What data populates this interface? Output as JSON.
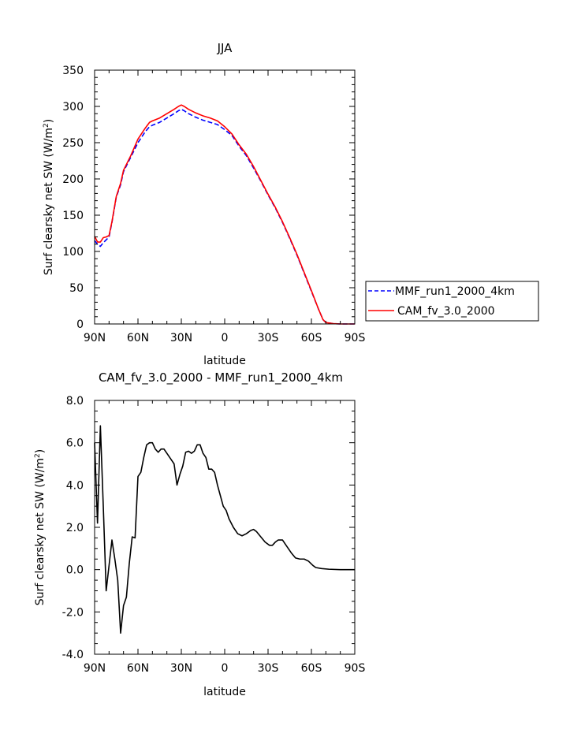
{
  "figure": {
    "top_title": "JJA",
    "bottom_title": "CAM_fv_3.0_2000 - MMF_run1_2000_4km"
  },
  "chart_data": [
    {
      "type": "line",
      "title": "JJA",
      "xlabel": "latitude",
      "ylabel": "Surf clearsky net SW (W/m²)",
      "ylabel_main": "Surf clearsky net SW (W/m",
      "ylabel_sup": "2",
      "ylabel_end": ")",
      "xticks": [
        90,
        60,
        30,
        0,
        -30,
        -60,
        -90
      ],
      "xtick_labels": [
        "90N",
        "60N",
        "30N",
        "0",
        "30S",
        "60S",
        "90S"
      ],
      "xlim": [
        90,
        -90
      ],
      "yticks": [
        0,
        50,
        100,
        150,
        200,
        250,
        300,
        350
      ],
      "ytick_labels": [
        "0",
        "50",
        "100",
        "150",
        "200",
        "250",
        "300",
        "350"
      ],
      "ylim": [
        0,
        350
      ],
      "legend_position": "right",
      "series": [
        {
          "name": "MMF_run1_2000_4km",
          "color": "#0000ff",
          "dash": "dashed",
          "points": [
            [
              90,
              115
            ],
            [
              88,
              110
            ],
            [
              86,
              107
            ],
            [
              84,
              112
            ],
            [
              82,
              116
            ],
            [
              80,
              120
            ],
            [
              78,
              140
            ],
            [
              75,
              175
            ],
            [
              72,
              192
            ],
            [
              70,
              210
            ],
            [
              65,
              230
            ],
            [
              60,
              250
            ],
            [
              55,
              265
            ],
            [
              52,
              272
            ],
            [
              50,
              274
            ],
            [
              45,
              278
            ],
            [
              40,
              284
            ],
            [
              35,
              290
            ],
            [
              32,
              294
            ],
            [
              30,
              296
            ],
            [
              28,
              294
            ],
            [
              25,
              290
            ],
            [
              20,
              285
            ],
            [
              15,
              281
            ],
            [
              10,
              278
            ],
            [
              5,
              275
            ],
            [
              0,
              268
            ],
            [
              -5,
              260
            ],
            [
              -10,
              245
            ],
            [
              -15,
              232
            ],
            [
              -20,
              215
            ],
            [
              -25,
              197
            ],
            [
              -30,
              178
            ],
            [
              -35,
              160
            ],
            [
              -40,
              140
            ],
            [
              -45,
              118
            ],
            [
              -50,
              95
            ],
            [
              -55,
              70
            ],
            [
              -60,
              45
            ],
            [
              -65,
              20
            ],
            [
              -68,
              6
            ],
            [
              -70,
              2
            ],
            [
              -75,
              0.5
            ],
            [
              -80,
              0
            ],
            [
              -90,
              0
            ]
          ]
        },
        {
          "name": "CAM_fv_3.0_2000",
          "color": "#ff0000",
          "dash": "solid",
          "points": [
            [
              90,
              121
            ],
            [
              88,
              113
            ],
            [
              86,
              113
            ],
            [
              84,
              119
            ],
            [
              82,
              120
            ],
            [
              80,
              122
            ],
            [
              78,
              141
            ],
            [
              75,
              176
            ],
            [
              72,
              194
            ],
            [
              70,
              212
            ],
            [
              65,
              232
            ],
            [
              60,
              255
            ],
            [
              55,
              270
            ],
            [
              52,
              278
            ],
            [
              50,
              280
            ],
            [
              45,
              284
            ],
            [
              40,
              290
            ],
            [
              35,
              296
            ],
            [
              32,
              300
            ],
            [
              30,
              302
            ],
            [
              28,
              300
            ],
            [
              25,
              296
            ],
            [
              20,
              291
            ],
            [
              15,
              287
            ],
            [
              10,
              284
            ],
            [
              5,
              280
            ],
            [
              0,
              272
            ],
            [
              -5,
              262
            ],
            [
              -10,
              247
            ],
            [
              -15,
              234
            ],
            [
              -20,
              217
            ],
            [
              -25,
              198
            ],
            [
              -30,
              179
            ],
            [
              -35,
              161
            ],
            [
              -40,
              141
            ],
            [
              -45,
              119
            ],
            [
              -50,
              96
            ],
            [
              -55,
              71
            ],
            [
              -60,
              46
            ],
            [
              -65,
              20
            ],
            [
              -68,
              6
            ],
            [
              -70,
              2
            ],
            [
              -75,
              0.5
            ],
            [
              -80,
              0
            ],
            [
              -90,
              0
            ]
          ]
        }
      ]
    },
    {
      "type": "line",
      "title": "CAM_fv_3.0_2000 - MMF_run1_2000_4km",
      "xlabel": "latitude",
      "ylabel": "Surf clearsky net SW (W/m²)",
      "ylabel_main": "Surf clearsky net SW (W/m",
      "ylabel_sup": "2",
      "ylabel_end": ")",
      "xticks": [
        90,
        60,
        30,
        0,
        -30,
        -60,
        -90
      ],
      "xtick_labels": [
        "90N",
        "60N",
        "30N",
        "0",
        "30S",
        "60S",
        "90S"
      ],
      "xlim": [
        90,
        -90
      ],
      "yticks": [
        -4,
        -2,
        0,
        2,
        4,
        6,
        8
      ],
      "ytick_labels": [
        "-4.0",
        "-2.0",
        "0.0",
        "2.0",
        "4.0",
        "6.0",
        "8.0"
      ],
      "ylim": [
        -4,
        8
      ],
      "series": [
        {
          "color": "#000000",
          "dash": "solid",
          "points": [
            [
              90,
              6.0
            ],
            [
              88,
              2.2
            ],
            [
              86,
              6.8
            ],
            [
              84,
              3.0
            ],
            [
              82,
              -1.0
            ],
            [
              80,
              0.2
            ],
            [
              78,
              1.4
            ],
            [
              76,
              0.5
            ],
            [
              74,
              -0.5
            ],
            [
              72,
              -3.0
            ],
            [
              70,
              -1.7
            ],
            [
              68,
              -1.3
            ],
            [
              66,
              0.3
            ],
            [
              64,
              1.55
            ],
            [
              62,
              1.5
            ],
            [
              60,
              4.4
            ],
            [
              58,
              4.6
            ],
            [
              56,
              5.3
            ],
            [
              54,
              5.9
            ],
            [
              52,
              6.0
            ],
            [
              50,
              6.0
            ],
            [
              48,
              5.7
            ],
            [
              46,
              5.55
            ],
            [
              44,
              5.7
            ],
            [
              42,
              5.7
            ],
            [
              40,
              5.5
            ],
            [
              38,
              5.3
            ],
            [
              35,
              5.0
            ],
            [
              33,
              4.0
            ],
            [
              31,
              4.5
            ],
            [
              29,
              4.9
            ],
            [
              27,
              5.55
            ],
            [
              25,
              5.6
            ],
            [
              23,
              5.5
            ],
            [
              21,
              5.6
            ],
            [
              19,
              5.9
            ],
            [
              17,
              5.9
            ],
            [
              15,
              5.5
            ],
            [
              13,
              5.3
            ],
            [
              11,
              4.75
            ],
            [
              9,
              4.75
            ],
            [
              7,
              4.6
            ],
            [
              5,
              4.0
            ],
            [
              3,
              3.5
            ],
            [
              1,
              3.0
            ],
            [
              -1,
              2.8
            ],
            [
              -3,
              2.4
            ],
            [
              -6,
              2.0
            ],
            [
              -9,
              1.7
            ],
            [
              -12,
              1.6
            ],
            [
              -15,
              1.7
            ],
            [
              -18,
              1.85
            ],
            [
              -20,
              1.9
            ],
            [
              -22,
              1.8
            ],
            [
              -25,
              1.55
            ],
            [
              -28,
              1.3
            ],
            [
              -31,
              1.15
            ],
            [
              -33,
              1.15
            ],
            [
              -35,
              1.3
            ],
            [
              -37,
              1.4
            ],
            [
              -40,
              1.4
            ],
            [
              -43,
              1.1
            ],
            [
              -46,
              0.8
            ],
            [
              -49,
              0.55
            ],
            [
              -52,
              0.5
            ],
            [
              -55,
              0.5
            ],
            [
              -58,
              0.4
            ],
            [
              -61,
              0.2
            ],
            [
              -63,
              0.1
            ],
            [
              -67,
              0.05
            ],
            [
              -72,
              0.02
            ],
            [
              -80,
              0
            ],
            [
              -90,
              0
            ]
          ]
        }
      ]
    }
  ]
}
